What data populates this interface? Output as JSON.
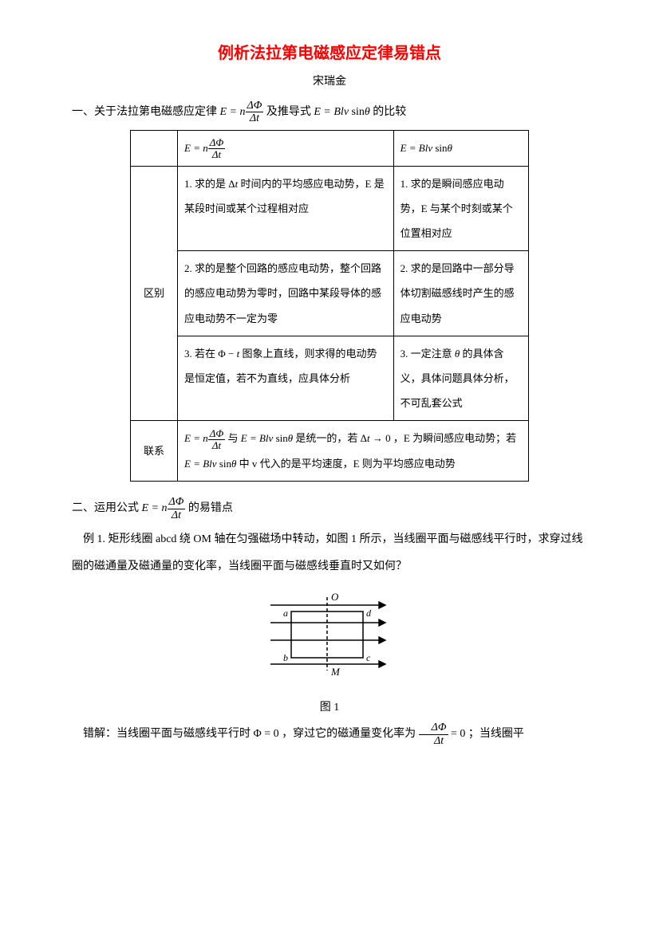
{
  "title": "例析法拉第电磁感应定律易错点",
  "author": "宋瑞金",
  "section1_prefix": "一、关于法拉第电磁感应定律 ",
  "section1_mid": " 及推导式 ",
  "section1_suffix": " 的比较",
  "formula_E_flux_html": "<span class='math'>E = n</span><span class='frac'><span class='num'>ΔΦ</span><span class='den'>Δ<i>t</i></span></span>",
  "formula_E_blv_html": "<span class='math'>E = Blv</span> sin<span class='math'>θ</span>",
  "table": {
    "header_left": "",
    "row_label_diff": "区别",
    "row_label_link": "联系",
    "col_a_head_formula": "E_n_dphi_dt",
    "col_b_head_formula": "E_blv_sin",
    "diff_a1": "1.  求的是 Δ<i>t</i> 时间内的平均感应电动势，E 是某段时间或某个过程相对应",
    "diff_b1": "1.  求的是瞬间感应电动势，E 与某个时刻或某个位置相对应",
    "diff_a2": "2.  求的是整个回路的感应电动势，整个回路的感应电动势为零时，回路中某段导体的感应电动势不一定为零",
    "diff_b2": "2.  求的是回路中一部分导体切割磁感线时产生的感应电动势",
    "diff_a3": "3.  若在 Φ − <i>t</i> 图象上直线，则求得的电动势是恒定值，若不为直线，应具体分析",
    "diff_b3": "3.  一定注意 <i>θ</i> 的具体含义，具体问题具体分析，不可乱套公式",
    "link_prefix": "",
    "link_mid": " 与 ",
    "link_after_formula": " 是统一的，若 Δ<i>t</i> → 0 ，E 为瞬间感应电动势；若 ",
    "link_tail": " 中 v 代入的是平均速度，E 则为平均感应电动势"
  },
  "section2_prefix": "二、运用公式 ",
  "section2_suffix": " 的易错点",
  "example1": "例 1.  矩形线圈 abcd 绕 OM 轴在匀强磁场中转动，如图 1 所示，当线圈平面与磁感线平行时，求穿过线圈的磁通量及磁通量的变化率，当线圈平面与磁感线垂直时又如何？",
  "figcap1": "图 1",
  "wrong_prefix": "错解：当线圈平面与磁感线平行时 Φ = 0 ，穿过它的磁通量变化率为 ",
  "wrong_zero": " = 0 ；当线圈平",
  "fig": {
    "O": "O",
    "M": "M",
    "a": "a",
    "b": "b",
    "c": "c",
    "d": "d"
  }
}
